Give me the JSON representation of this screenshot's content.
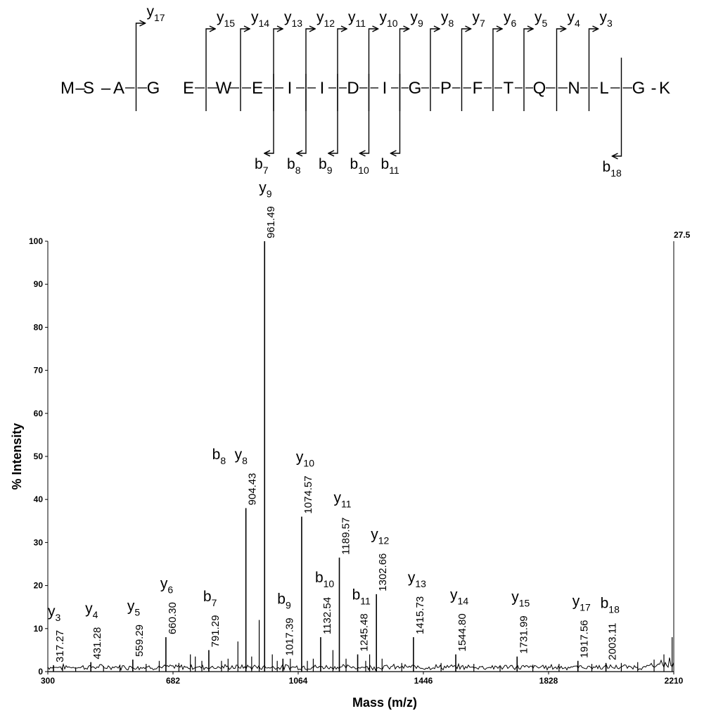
{
  "peptide": {
    "residues": [
      "M",
      "S",
      "A",
      "G",
      "E",
      "W",
      "E",
      "I",
      "I",
      "D",
      "I",
      "G",
      "P",
      "F",
      "T",
      "Q",
      "N",
      "L",
      "G",
      "K"
    ],
    "separators": [
      "–",
      "–",
      "",
      "",
      "",
      "",
      "",
      "",
      "",
      "",
      "",
      "",
      "",
      "",
      "",
      "",
      "",
      "",
      "-"
    ],
    "y_cleavages": [
      {
        "after": 3,
        "label": "y",
        "n": "17"
      },
      {
        "after": 5,
        "label": "y",
        "n": "15"
      },
      {
        "after": 6,
        "label": "y",
        "n": "14"
      },
      {
        "after": 7,
        "label": "y",
        "n": "13"
      },
      {
        "after": 8,
        "label": "y",
        "n": "12"
      },
      {
        "after": 9,
        "label": "y",
        "n": "11"
      },
      {
        "after": 10,
        "label": "y",
        "n": "10"
      },
      {
        "after": 11,
        "label": "y",
        "n": "9"
      },
      {
        "after": 12,
        "label": "y",
        "n": "8"
      },
      {
        "after": 13,
        "label": "y",
        "n": "7"
      },
      {
        "after": 14,
        "label": "y",
        "n": "6"
      },
      {
        "after": 15,
        "label": "y",
        "n": "5"
      },
      {
        "after": 16,
        "label": "y",
        "n": "4"
      },
      {
        "after": 17,
        "label": "y",
        "n": "3"
      }
    ],
    "b_cleavages": [
      {
        "after": 7,
        "label": "b",
        "n": "7"
      },
      {
        "after": 8,
        "label": "b",
        "n": "8"
      },
      {
        "after": 9,
        "label": "b",
        "n": "9"
      },
      {
        "after": 10,
        "label": "b",
        "n": "10"
      },
      {
        "after": 11,
        "label": "b",
        "n": "11"
      },
      {
        "after": 18,
        "label": "b",
        "n": "18"
      }
    ]
  },
  "chart_data": {
    "type": "bar",
    "xlabel": "Mass (m/z)",
    "ylabel": "% Intensity",
    "xlim": [
      300,
      2210
    ],
    "ylim": [
      0,
      100
    ],
    "x_ticks": [
      300,
      682,
      1064,
      1446,
      1828,
      2210
    ],
    "y_ticks": [
      0,
      10,
      20,
      30,
      40,
      50,
      60,
      70,
      80,
      90,
      100
    ],
    "max_intensity_label": "27.5",
    "peaks": [
      {
        "mz": 317.27,
        "intensity": 1.5,
        "label": "317.27",
        "ions": [
          {
            "t": "y",
            "n": "3"
          }
        ]
      },
      {
        "mz": 431.28,
        "intensity": 2.2,
        "label": "431.28",
        "ions": [
          {
            "t": "y",
            "n": "4"
          }
        ]
      },
      {
        "mz": 559.29,
        "intensity": 2.8,
        "label": "559.29",
        "ions": [
          {
            "t": "y",
            "n": "5"
          }
        ]
      },
      {
        "mz": 660.3,
        "intensity": 8.0,
        "label": "660.30",
        "ions": [
          {
            "t": "y",
            "n": "6"
          }
        ]
      },
      {
        "mz": 791.29,
        "intensity": 5.0,
        "label": "791.29",
        "ions": [
          {
            "t": "b",
            "n": "7"
          }
        ]
      },
      {
        "mz": 904.43,
        "intensity": 38.0,
        "label": "904.43",
        "ions": [
          {
            "t": "b",
            "n": "8"
          },
          {
            "t": "y",
            "n": "8"
          }
        ]
      },
      {
        "mz": 961.49,
        "intensity": 100.0,
        "label": "961.49",
        "ions": [
          {
            "t": "y",
            "n": "9"
          }
        ]
      },
      {
        "mz": 1017.39,
        "intensity": 3.0,
        "label": "1017.39",
        "ions": [
          {
            "t": "b",
            "n": "9"
          }
        ]
      },
      {
        "mz": 1074.57,
        "intensity": 36.0,
        "label": "1074.57",
        "ions": [
          {
            "t": "y",
            "n": "10"
          }
        ]
      },
      {
        "mz": 1132.54,
        "intensity": 8.0,
        "label": "1132.54",
        "ions": [
          {
            "t": "b",
            "n": "10"
          }
        ]
      },
      {
        "mz": 1189.57,
        "intensity": 26.5,
        "label": "1189.57",
        "ions": [
          {
            "t": "y",
            "n": "11"
          }
        ]
      },
      {
        "mz": 1245.48,
        "intensity": 4.0,
        "label": "1245.48",
        "ions": [
          {
            "t": "b",
            "n": "11"
          }
        ]
      },
      {
        "mz": 1302.66,
        "intensity": 18.0,
        "label": "1302.66",
        "ions": [
          {
            "t": "y",
            "n": "12"
          }
        ]
      },
      {
        "mz": 1415.73,
        "intensity": 8.0,
        "label": "1415.73",
        "ions": [
          {
            "t": "y",
            "n": "13"
          }
        ]
      },
      {
        "mz": 1544.8,
        "intensity": 4.0,
        "label": "1544.80",
        "ions": [
          {
            "t": "y",
            "n": "14"
          }
        ]
      },
      {
        "mz": 1731.99,
        "intensity": 3.5,
        "label": "1731.99",
        "ions": [
          {
            "t": "y",
            "n": "15"
          }
        ]
      },
      {
        "mz": 1917.56,
        "intensity": 2.5,
        "label": "1917.56",
        "ions": [
          {
            "t": "y",
            "n": "17"
          }
        ]
      },
      {
        "mz": 2003.11,
        "intensity": 2.0,
        "label": "2003.11",
        "ions": [
          {
            "t": "b",
            "n": "18"
          }
        ]
      }
    ],
    "unlabeled_peaks": [
      {
        "mz": 345,
        "intensity": 1.2
      },
      {
        "mz": 385,
        "intensity": 1.0
      },
      {
        "mz": 470,
        "intensity": 1.3
      },
      {
        "mz": 520,
        "intensity": 1.6
      },
      {
        "mz": 600,
        "intensity": 1.8
      },
      {
        "mz": 640,
        "intensity": 2.5
      },
      {
        "mz": 700,
        "intensity": 2.0
      },
      {
        "mz": 735,
        "intensity": 4.0
      },
      {
        "mz": 750,
        "intensity": 3.5
      },
      {
        "mz": 770,
        "intensity": 2.5
      },
      {
        "mz": 830,
        "intensity": 2.5
      },
      {
        "mz": 850,
        "intensity": 3.0
      },
      {
        "mz": 880,
        "intensity": 7.0
      },
      {
        "mz": 922,
        "intensity": 3.5
      },
      {
        "mz": 945,
        "intensity": 12.0
      },
      {
        "mz": 985,
        "intensity": 4.0
      },
      {
        "mz": 1000,
        "intensity": 2.5
      },
      {
        "mz": 1040,
        "intensity": 3.0
      },
      {
        "mz": 1092,
        "intensity": 2.5
      },
      {
        "mz": 1110,
        "intensity": 3.0
      },
      {
        "mz": 1170,
        "intensity": 5.0
      },
      {
        "mz": 1210,
        "intensity": 3.0
      },
      {
        "mz": 1270,
        "intensity": 2.5
      },
      {
        "mz": 1282,
        "intensity": 4.0
      },
      {
        "mz": 1320,
        "intensity": 3.0
      },
      {
        "mz": 1380,
        "intensity": 2.0
      },
      {
        "mz": 1500,
        "intensity": 2.0
      },
      {
        "mz": 1600,
        "intensity": 1.8
      },
      {
        "mz": 1680,
        "intensity": 1.5
      },
      {
        "mz": 1780,
        "intensity": 1.6
      },
      {
        "mz": 1860,
        "intensity": 1.8
      },
      {
        "mz": 1960,
        "intensity": 1.8
      },
      {
        "mz": 2050,
        "intensity": 2.0
      },
      {
        "mz": 2100,
        "intensity": 2.2
      },
      {
        "mz": 2150,
        "intensity": 2.8
      },
      {
        "mz": 2180,
        "intensity": 4.0
      },
      {
        "mz": 2205,
        "intensity": 8.0
      }
    ]
  }
}
